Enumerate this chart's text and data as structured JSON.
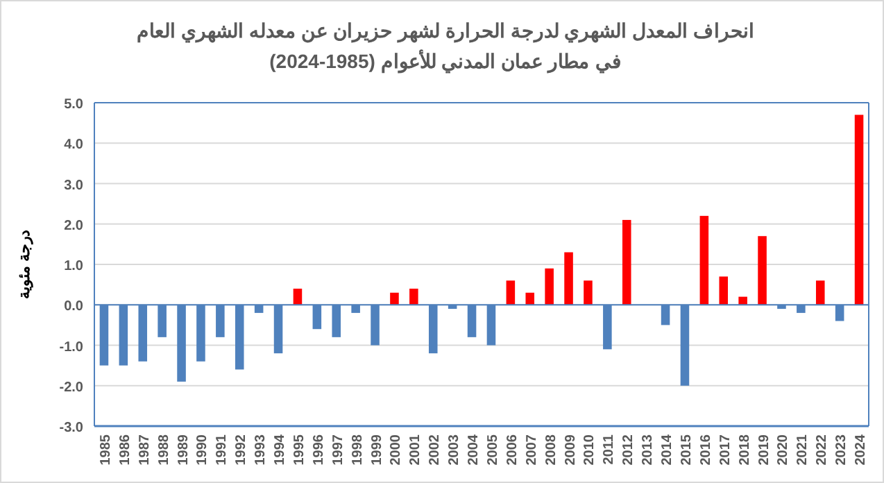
{
  "chart_data": {
    "type": "bar",
    "title": "انحراف المعدل الشهري لدرجة الحرارة لشهر حزيران عن معدله الشهري العام في مطار عمان المدني للأعوام (1985-2024)",
    "ylabel": "درجة مئوية",
    "categories": [
      "1985",
      "1986",
      "1987",
      "1988",
      "1989",
      "1990",
      "1991",
      "1992",
      "1993",
      "1994",
      "1995",
      "1996",
      "1997",
      "1998",
      "1999",
      "2000",
      "2001",
      "2002",
      "2003",
      "2004",
      "2005",
      "2006",
      "2007",
      "2008",
      "2009",
      "2010",
      "2011",
      "2012",
      "2013",
      "2014",
      "2015",
      "2016",
      "2017",
      "2018",
      "2019",
      "2020",
      "2021",
      "2022",
      "2023",
      "2024"
    ],
    "values": [
      -1.5,
      -1.5,
      -1.4,
      -0.8,
      -1.9,
      -1.4,
      -0.8,
      -1.6,
      -0.2,
      -1.2,
      0.4,
      -0.6,
      -0.8,
      -0.2,
      -1.0,
      0.3,
      0.4,
      -1.2,
      -0.1,
      -0.8,
      -1.0,
      0.6,
      0.3,
      0.9,
      1.3,
      0.6,
      -1.1,
      2.1,
      0,
      -0.5,
      -2.0,
      2.2,
      0.7,
      0.2,
      1.7,
      -0.1,
      -0.2,
      0.6,
      -0.4,
      4.7
    ],
    "colors": [
      "#4f81bd",
      "#4f81bd",
      "#4f81bd",
      "#4f81bd",
      "#4f81bd",
      "#4f81bd",
      "#4f81bd",
      "#4f81bd",
      "#4f81bd",
      "#4f81bd",
      "#ff0000",
      "#4f81bd",
      "#4f81bd",
      "#4f81bd",
      "#4f81bd",
      "#ff0000",
      "#ff0000",
      "#4f81bd",
      "#4f81bd",
      "#4f81bd",
      "#4f81bd",
      "#ff0000",
      "#ff0000",
      "#ff0000",
      "#ff0000",
      "#ff0000",
      "#4f81bd",
      "#ff0000",
      "#4f81bd",
      "#4f81bd",
      "#4f81bd",
      "#ff0000",
      "#ff0000",
      "#ff0000",
      "#ff0000",
      "#4f81bd",
      "#4f81bd",
      "#ff0000",
      "#4f81bd",
      "#ff0000"
    ],
    "ylim": [
      -3,
      5
    ],
    "yticks": [
      {
        "value": -3,
        "label": "-3.0"
      },
      {
        "value": -2,
        "label": "-2.0"
      },
      {
        "value": -1,
        "label": "-1.0"
      },
      {
        "value": 0,
        "label": "0.0"
      },
      {
        "value": 1,
        "label": "1.0"
      },
      {
        "value": 2,
        "label": "2.0"
      },
      {
        "value": 3,
        "label": "3.0"
      },
      {
        "value": 4,
        "label": "4.0"
      },
      {
        "value": 5,
        "label": "5.0"
      }
    ],
    "ref_lines": [
      {
        "axis": "y",
        "value": 0,
        "color": "#4f81bd"
      }
    ],
    "grid": "y"
  }
}
